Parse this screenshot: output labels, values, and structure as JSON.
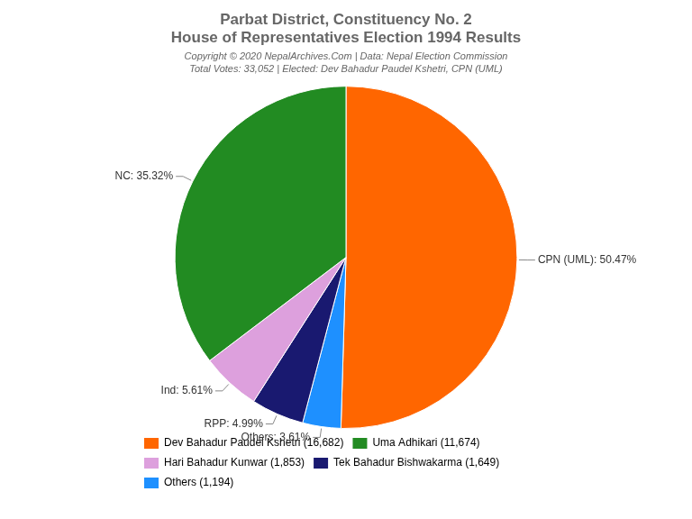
{
  "chart_data": {
    "type": "pie",
    "title": [
      "Parbat District, Constituency No. 2",
      "House of Representatives Election 1994 Results"
    ],
    "subtitle": [
      "Copyright © 2020 NepalArchives.Com | Data: Nepal Election Commission",
      "Total Votes: 33,052 | Elected: Dev Bahadur Paudel Kshetri, CPN (UML)"
    ],
    "categories": [
      "CPN (UML): 50.47%",
      "Others: 3.61%",
      "RPP: 4.99%",
      "Ind: 5.61%",
      "NC: 35.32%"
    ],
    "values": [
      16682,
      1194,
      1649,
      1853,
      11674
    ],
    "colors": [
      "#FF6600",
      "#1E90FF",
      "#191970",
      "#DDA0DD",
      "#228B22"
    ],
    "legend": "lower left",
    "legend_entries": [
      {
        "label": "Dev Bahadur Paudel Kshetri (16,682)",
        "color": "#FF6600"
      },
      {
        "label": "Uma Adhikari (11,674)",
        "color": "#228B22"
      },
      {
        "label": "Hari Bahadur Kunwar (1,853)",
        "color": "#DDA0DD"
      },
      {
        "label": "Tek Bahadur Bishwakarma (1,649)",
        "color": "#191970"
      },
      {
        "label": "Others (1,194)",
        "color": "#1E90FF"
      }
    ]
  }
}
